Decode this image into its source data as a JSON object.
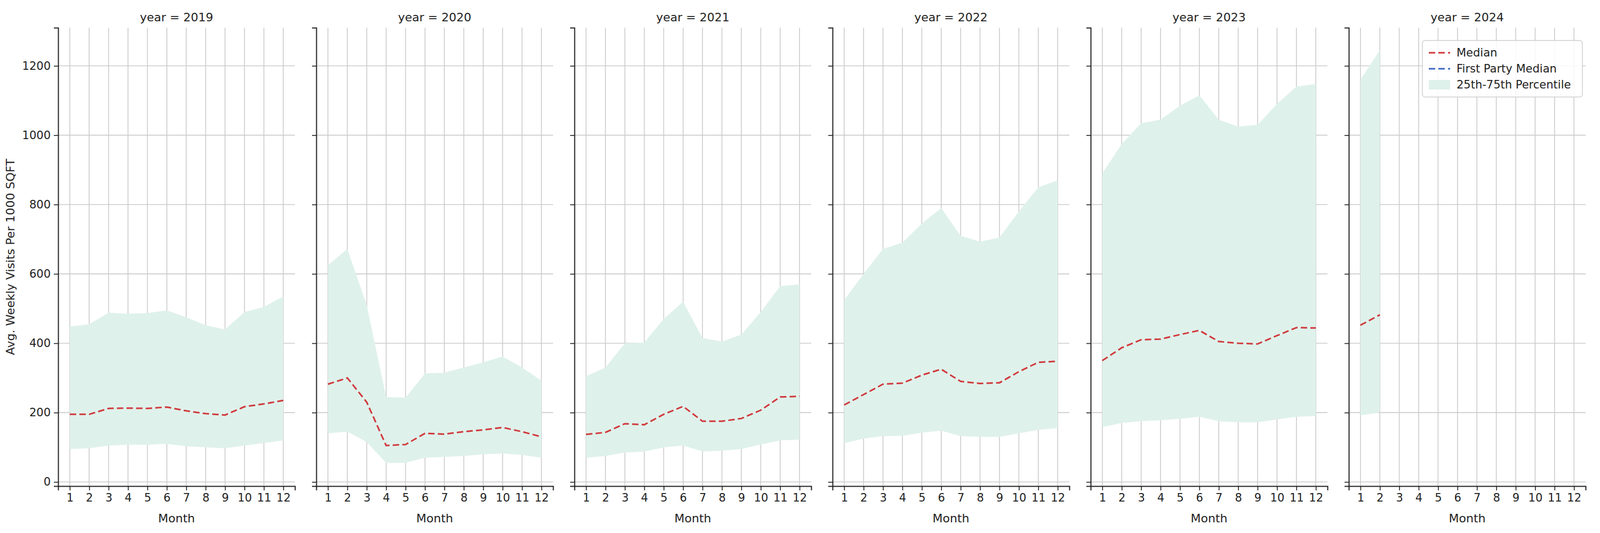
{
  "chart_data": [
    {
      "type": "line",
      "title": "year = 2019",
      "x_label": "Month",
      "y_label": "Avg. Weekly Visits Per 1000 SQFT",
      "x": [
        1,
        2,
        3,
        4,
        5,
        6,
        7,
        8,
        9,
        10,
        11,
        12
      ],
      "xlim": [
        0.4,
        12.6
      ],
      "xticks": [
        1,
        2,
        3,
        4,
        5,
        6,
        7,
        8,
        9,
        10,
        11,
        12
      ],
      "ylim": [
        -12,
        1310
      ],
      "yticks": [
        0,
        200,
        400,
        600,
        800,
        1000,
        1200
      ],
      "grid": true,
      "series": [
        {
          "name": "Median",
          "color": "#d0393b",
          "line_style": "dashed",
          "values": [
            195,
            195,
            212,
            213,
            212,
            216,
            205,
            197,
            193,
            217,
            225,
            235
          ]
        },
        {
          "name": "25th-75th Percentile",
          "type": "area",
          "color": "#dff1eb",
          "low": [
            95,
            97,
            105,
            107,
            107,
            110,
            103,
            100,
            97,
            105,
            112,
            120
          ],
          "high": [
            448,
            455,
            488,
            485,
            487,
            495,
            475,
            452,
            440,
            490,
            505,
            535
          ]
        }
      ]
    },
    {
      "type": "line",
      "title": "year = 2020",
      "x_label": "Month",
      "x": [
        1,
        2,
        3,
        4,
        5,
        6,
        7,
        8,
        9,
        10,
        11,
        12
      ],
      "xlim": [
        0.4,
        12.6
      ],
      "xticks": [
        1,
        2,
        3,
        4,
        5,
        6,
        7,
        8,
        9,
        10,
        11,
        12
      ],
      "ylim": [
        -12,
        1310
      ],
      "yticks": [
        0,
        200,
        400,
        600,
        800,
        1000,
        1200
      ],
      "grid": true,
      "tick_labels": "x",
      "series": [
        {
          "name": "Median",
          "color": "#d0393b",
          "line_style": "dashed",
          "values": [
            282,
            300,
            230,
            105,
            108,
            140,
            138,
            145,
            150,
            157,
            145,
            130
          ]
        },
        {
          "name": "25th-75th Percentile",
          "type": "area",
          "color": "#dff1eb",
          "low": [
            140,
            145,
            115,
            55,
            55,
            70,
            72,
            75,
            80,
            82,
            78,
            70
          ],
          "high": [
            625,
            672,
            510,
            245,
            243,
            313,
            315,
            330,
            345,
            362,
            330,
            292
          ]
        }
      ]
    },
    {
      "type": "line",
      "title": "year = 2021",
      "x_label": "Month",
      "x": [
        1,
        2,
        3,
        4,
        5,
        6,
        7,
        8,
        9,
        10,
        11,
        12
      ],
      "xlim": [
        0.4,
        12.6
      ],
      "xticks": [
        1,
        2,
        3,
        4,
        5,
        6,
        7,
        8,
        9,
        10,
        11,
        12
      ],
      "ylim": [
        -12,
        1310
      ],
      "yticks": [
        0,
        200,
        400,
        600,
        800,
        1000,
        1200
      ],
      "grid": true,
      "tick_labels": "x",
      "series": [
        {
          "name": "Median",
          "color": "#d0393b",
          "line_style": "dashed",
          "values": [
            137,
            143,
            168,
            165,
            195,
            218,
            175,
            175,
            183,
            207,
            245,
            247
          ]
        },
        {
          "name": "25th-75th Percentile",
          "type": "area",
          "color": "#dff1eb",
          "low": [
            70,
            75,
            85,
            87,
            100,
            105,
            88,
            90,
            95,
            108,
            120,
            122
          ],
          "high": [
            305,
            330,
            400,
            402,
            470,
            520,
            415,
            405,
            425,
            490,
            565,
            570
          ]
        }
      ]
    },
    {
      "type": "line",
      "title": "year = 2022",
      "x_label": "Month",
      "x": [
        1,
        2,
        3,
        4,
        5,
        6,
        7,
        8,
        9,
        10,
        11,
        12
      ],
      "xlim": [
        0.4,
        12.6
      ],
      "xticks": [
        1,
        2,
        3,
        4,
        5,
        6,
        7,
        8,
        9,
        10,
        11,
        12
      ],
      "ylim": [
        -12,
        1310
      ],
      "yticks": [
        0,
        200,
        400,
        600,
        800,
        1000,
        1200
      ],
      "grid": true,
      "tick_labels": "x",
      "series": [
        {
          "name": "Median",
          "color": "#d0393b",
          "line_style": "dashed",
          "values": [
            222,
            252,
            282,
            285,
            308,
            325,
            290,
            284,
            286,
            318,
            345,
            348
          ]
        },
        {
          "name": "25th-75th Percentile",
          "type": "area",
          "color": "#dff1eb",
          "low": [
            112,
            125,
            132,
            133,
            142,
            148,
            132,
            130,
            130,
            140,
            150,
            155
          ],
          "high": [
            525,
            600,
            672,
            690,
            745,
            790,
            710,
            693,
            705,
            780,
            850,
            870
          ]
        }
      ]
    },
    {
      "type": "line",
      "title": "year = 2023",
      "x_label": "Month",
      "x": [
        1,
        2,
        3,
        4,
        5,
        6,
        7,
        8,
        9,
        10,
        11,
        12
      ],
      "xlim": [
        0.4,
        12.6
      ],
      "xticks": [
        1,
        2,
        3,
        4,
        5,
        6,
        7,
        8,
        9,
        10,
        11,
        12
      ],
      "ylim": [
        -12,
        1310
      ],
      "yticks": [
        0,
        200,
        400,
        600,
        800,
        1000,
        1200
      ],
      "grid": true,
      "tick_labels": "x",
      "series": [
        {
          "name": "Median",
          "color": "#d0393b",
          "line_style": "dashed",
          "values": [
            350,
            387,
            410,
            412,
            425,
            437,
            405,
            400,
            398,
            422,
            445,
            444
          ]
        },
        {
          "name": "25th-75th Percentile",
          "type": "area",
          "color": "#dff1eb",
          "low": [
            158,
            170,
            175,
            178,
            182,
            188,
            175,
            172,
            172,
            180,
            188,
            190
          ],
          "high": [
            890,
            975,
            1035,
            1045,
            1085,
            1115,
            1045,
            1025,
            1030,
            1090,
            1140,
            1148
          ]
        }
      ]
    },
    {
      "type": "line",
      "title": "year = 2024",
      "x_label": "Month",
      "x": [
        1,
        2,
        3,
        4,
        5,
        6,
        7,
        8,
        9,
        10,
        11,
        12
      ],
      "xlim": [
        0.4,
        12.6
      ],
      "xticks": [
        1,
        2,
        3,
        4,
        5,
        6,
        7,
        8,
        9,
        10,
        11,
        12
      ],
      "ylim": [
        -12,
        1310
      ],
      "yticks": [
        0,
        200,
        400,
        600,
        800,
        1000,
        1200
      ],
      "grid": true,
      "tick_labels": "x",
      "legend": "upper right",
      "series": [
        {
          "name": "Median",
          "color": "#d0393b",
          "line_style": "dashed",
          "values": [
            452,
            482,
            null,
            null,
            null,
            null,
            null,
            null,
            null,
            null,
            null,
            null
          ]
        },
        {
          "name": "First Party Median",
          "color": "#3a67c4",
          "line_style": "dashed",
          "values": [
            null,
            null,
            null,
            null,
            null,
            null,
            null,
            null,
            null,
            null,
            null,
            null
          ]
        },
        {
          "name": "25th-75th Percentile",
          "type": "area",
          "color": "#dff1eb",
          "low": [
            192,
            200,
            null,
            null,
            null,
            null,
            null,
            null,
            null,
            null,
            null,
            null
          ],
          "high": [
            1160,
            1245,
            null,
            null,
            null,
            null,
            null,
            null,
            null,
            null,
            null,
            null
          ]
        }
      ]
    }
  ]
}
